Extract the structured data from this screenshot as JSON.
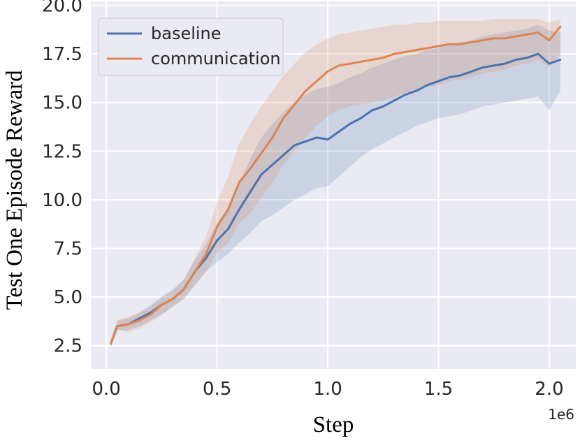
{
  "chart_data": {
    "type": "line",
    "title": "",
    "xlabel": "Step",
    "ylabel": "Test One Episode Reward",
    "x_offset_label": "1e6",
    "xlim": [
      -0.07,
      2.12
    ],
    "ylim": [
      1.3,
      20.2
    ],
    "xticks": [
      0.0,
      0.5,
      1.0,
      1.5,
      2.0
    ],
    "xtick_labels": [
      "0.0",
      "0.5",
      "1.0",
      "1.5",
      "2.0"
    ],
    "yticks": [
      2.5,
      5.0,
      7.5,
      10.0,
      12.5,
      15.0,
      17.5,
      20.0
    ],
    "ytick_labels": [
      "2.5",
      "5.0",
      "7.5",
      "10.0",
      "12.5",
      "15.0",
      "17.5",
      "20.0"
    ],
    "grid": true,
    "legend_position": "top-left",
    "x": [
      0.02,
      0.05,
      0.1,
      0.15,
      0.2,
      0.25,
      0.3,
      0.35,
      0.4,
      0.45,
      0.5,
      0.55,
      0.6,
      0.65,
      0.7,
      0.75,
      0.8,
      0.85,
      0.9,
      0.95,
      1.0,
      1.05,
      1.1,
      1.15,
      1.2,
      1.25,
      1.3,
      1.35,
      1.4,
      1.45,
      1.5,
      1.55,
      1.6,
      1.65,
      1.7,
      1.75,
      1.8,
      1.85,
      1.9,
      1.95,
      2.0,
      2.05
    ],
    "series": [
      {
        "name": "baseline",
        "color": "#4c72b0",
        "values": [
          2.6,
          3.5,
          3.6,
          3.9,
          4.2,
          4.6,
          4.9,
          5.4,
          6.3,
          7.0,
          7.9,
          8.5,
          9.5,
          10.4,
          11.3,
          11.8,
          12.3,
          12.8,
          13.0,
          13.2,
          13.1,
          13.5,
          13.9,
          14.2,
          14.6,
          14.8,
          15.1,
          15.4,
          15.6,
          15.9,
          16.1,
          16.3,
          16.4,
          16.6,
          16.8,
          16.9,
          17.0,
          17.2,
          17.3,
          17.5,
          17.0,
          17.2
        ],
        "lower": [
          2.4,
          3.3,
          3.3,
          3.5,
          3.8,
          4.1,
          4.5,
          4.9,
          5.6,
          6.3,
          6.8,
          7.2,
          7.8,
          8.3,
          8.9,
          9.2,
          9.6,
          10.0,
          10.3,
          10.6,
          10.7,
          11.2,
          11.7,
          12.2,
          12.6,
          12.9,
          13.2,
          13.5,
          13.8,
          14.0,
          14.2,
          14.3,
          14.4,
          14.6,
          14.8,
          14.9,
          15.0,
          15.1,
          15.2,
          15.3,
          14.6,
          15.6
        ],
        "upper": [
          2.8,
          3.8,
          3.9,
          4.2,
          4.6,
          5.0,
          5.4,
          5.9,
          6.9,
          7.7,
          8.8,
          9.6,
          10.9,
          12.1,
          13.2,
          13.9,
          14.5,
          15.0,
          15.4,
          15.7,
          15.8,
          16.0,
          16.3,
          16.5,
          16.8,
          17.0,
          17.2,
          17.4,
          17.5,
          17.7,
          17.8,
          18.0,
          18.1,
          18.2,
          18.4,
          18.5,
          18.6,
          18.7,
          18.8,
          19.0,
          18.7,
          18.6
        ]
      },
      {
        "name": "communication",
        "color": "#dd8452",
        "values": [
          2.6,
          3.5,
          3.6,
          3.8,
          4.1,
          4.6,
          4.9,
          5.4,
          6.3,
          7.2,
          8.6,
          9.5,
          10.9,
          11.6,
          12.4,
          13.2,
          14.2,
          14.9,
          15.6,
          16.1,
          16.6,
          16.9,
          17.0,
          17.1,
          17.2,
          17.3,
          17.5,
          17.6,
          17.7,
          17.8,
          17.9,
          18.0,
          18.0,
          18.1,
          18.2,
          18.3,
          18.3,
          18.4,
          18.5,
          18.6,
          18.2,
          18.9
        ],
        "lower": [
          2.4,
          3.3,
          3.2,
          3.4,
          3.7,
          4.1,
          4.5,
          4.9,
          5.6,
          6.3,
          7.3,
          7.8,
          8.8,
          9.3,
          10.1,
          10.9,
          11.8,
          12.5,
          13.2,
          13.8,
          14.3,
          14.6,
          14.8,
          14.9,
          15.0,
          15.1,
          15.3,
          15.5,
          15.6,
          15.8,
          15.9,
          16.1,
          16.2,
          16.3,
          16.5,
          16.6,
          16.7,
          16.9,
          17.0,
          17.2,
          16.8,
          17.5
        ],
        "upper": [
          2.8,
          3.8,
          4.0,
          4.2,
          4.5,
          5.0,
          5.3,
          5.9,
          7.0,
          8.1,
          9.9,
          11.2,
          12.9,
          13.9,
          14.8,
          15.6,
          16.4,
          17.0,
          17.6,
          18.0,
          18.3,
          18.5,
          18.6,
          18.7,
          18.8,
          18.9,
          19.0,
          19.0,
          19.1,
          19.1,
          19.2,
          19.2,
          19.2,
          19.2,
          19.2,
          19.3,
          19.3,
          19.3,
          19.3,
          19.3,
          19.1,
          19.3
        ]
      }
    ]
  }
}
